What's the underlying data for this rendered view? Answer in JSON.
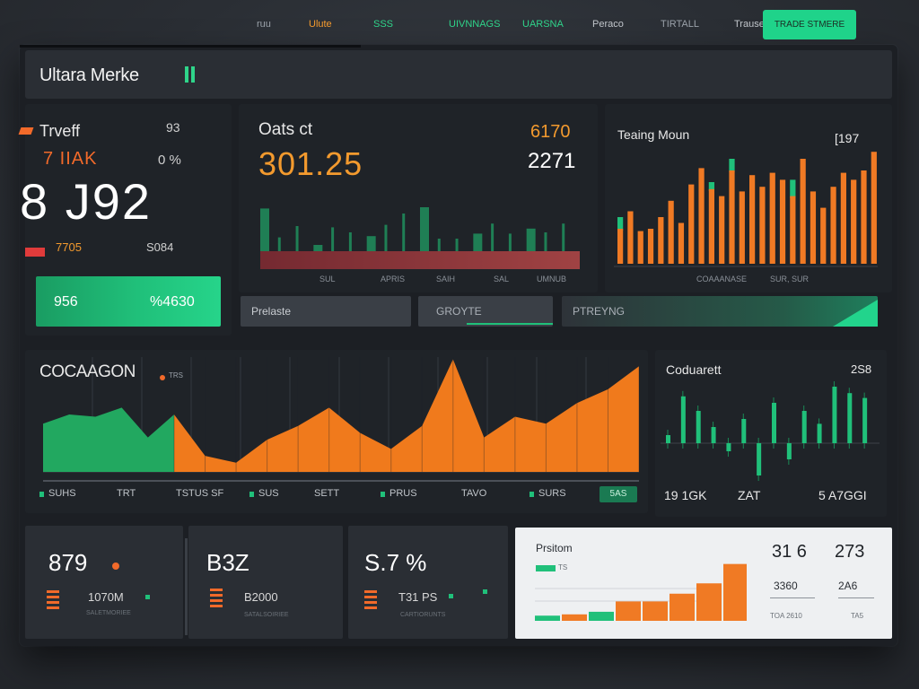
{
  "header": {
    "brand": "Ultara Merke",
    "nav": [
      "ruu",
      "Ulute",
      "SSS",
      "UIVNNAGS",
      "UARSNA",
      "Peraco",
      "TIRTALL",
      "Trause"
    ],
    "cta": "TRADE STMERE"
  },
  "panel1": {
    "title": "Trveff",
    "top_value": "93",
    "sub": "7 IIAK",
    "sub_value": "0 %",
    "big": "8 J92",
    "left_value": "7705",
    "right_value": "S084",
    "bar_left": "956",
    "bar_right": "%4630"
  },
  "panel2": {
    "title": "Oats ct",
    "big": "301.25",
    "right_top": "6170",
    "right_bottom": "2271",
    "axis": [
      "SUL",
      "APRIS",
      "SAIH",
      "SAL",
      "UMNUB"
    ]
  },
  "panel3": {
    "title": "Teaing Moun",
    "value": "[197",
    "axis": [
      "COAAANASE",
      "SUR, SUR"
    ]
  },
  "tabs": [
    "Prelaste",
    "GROYTE",
    "PTREYNG"
  ],
  "panel4": {
    "title": "COCAAGON",
    "sub": "TRS",
    "axis": [
      "SUHS",
      "TRT",
      "TSTUS SF",
      "SUS",
      "SETT",
      "PRUS",
      "TAVO",
      "SURS"
    ],
    "chip": "5AS"
  },
  "panel5": {
    "title": "Coduarett",
    "value": "2S8",
    "bottom": [
      "19 1GK",
      "ZAT",
      "5 A7GGI"
    ]
  },
  "cards": [
    {
      "big": "879",
      "label": "1070M",
      "sub": "SALETMORIEE"
    },
    {
      "big": "B3Z",
      "label": "B2000",
      "sub": "SATALSOIRIEE"
    },
    {
      "big": "S.7 %",
      "label": "T31 PS",
      "sub": "CARTIORUNTS"
    }
  ],
  "light_card": {
    "title": "Prsitom",
    "chip_label": "TS",
    "v1": "31 6",
    "v2": "273",
    "s1": "3360",
    "s2": "2A6",
    "f1": "TOA 2610",
    "f2": "TA5"
  },
  "chart_data": [
    {
      "type": "bar",
      "title": "Oats ct",
      "note": "mini bar chart, green bars",
      "values": [
        68,
        22,
        40,
        10,
        38,
        30,
        24,
        42,
        60,
        70,
        20,
        20,
        28,
        44,
        28,
        36,
        30,
        44
      ]
    },
    {
      "type": "bar",
      "title": "Teaing Moun",
      "series": [
        {
          "name": "orange",
          "values": [
            30,
            45,
            28,
            30,
            40,
            54,
            35,
            68,
            82,
            64,
            58,
            80,
            62,
            76,
            66,
            78,
            72,
            58,
            90,
            62,
            48,
            66,
            78,
            72,
            80,
            96
          ]
        },
        {
          "name": "green",
          "values": [
            40,
            0,
            0,
            0,
            0,
            0,
            0,
            0,
            0,
            70,
            0,
            90,
            0,
            0,
            0,
            70,
            66,
            72,
            0,
            0,
            0,
            60,
            0,
            0,
            0,
            0
          ]
        }
      ]
    },
    {
      "type": "area",
      "title": "COCAAGON",
      "series": [
        {
          "name": "green",
          "values": [
            42,
            50,
            48,
            56,
            30,
            50
          ]
        },
        {
          "name": "orange",
          "values": [
            50,
            14,
            8,
            28,
            40,
            56,
            34,
            20,
            40,
            98,
            30,
            48,
            42,
            60,
            72,
            92
          ]
        }
      ]
    },
    {
      "type": "bar",
      "title": "Coduarett",
      "values": [
        10,
        58,
        40,
        20,
        -10,
        30,
        -40,
        50,
        -20,
        40,
        24,
        70,
        62,
        56
      ]
    },
    {
      "type": "bar",
      "title": "Prsitom",
      "values": [
        8,
        10,
        14,
        30,
        30,
        42,
        58,
        88
      ]
    }
  ]
}
